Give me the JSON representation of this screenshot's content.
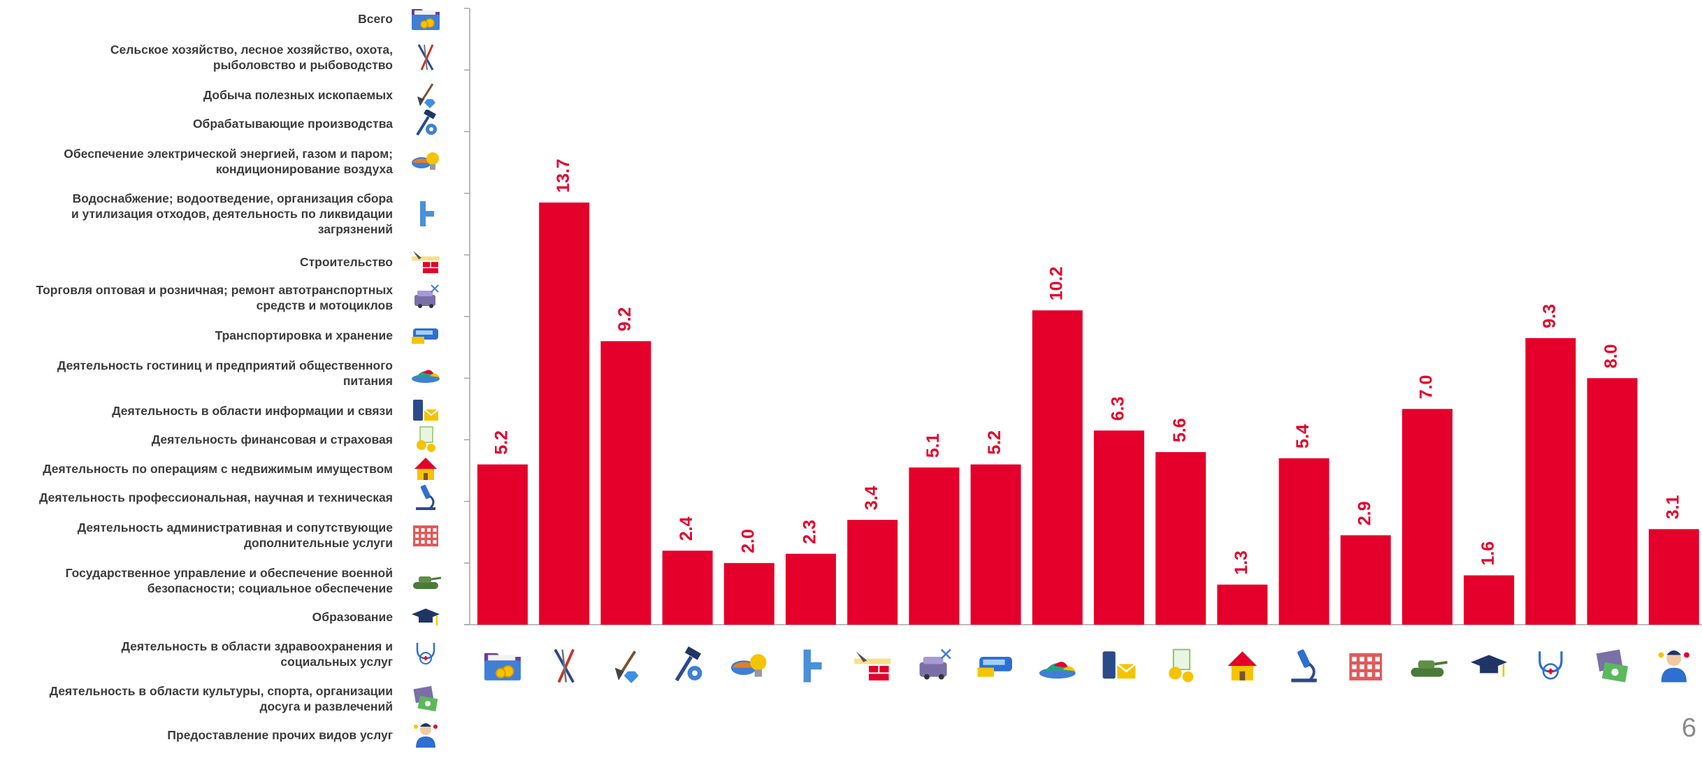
{
  "chart_data": {
    "type": "bar",
    "categories": [
      "Всего",
      "Сельское хозяйство, лесное хозяйство, охота, рыболовство и рыбоводство",
      "Добыча полезных ископаемых",
      "Обрабатывающие производства",
      "Обеспечение электрической энергией, газом и паром; кондиционирование воздуха",
      "Водоснабжение; водоотведение, организация сбора и утилизация отходов, деятельность по ликвидации загрязнений",
      "Строительство",
      "Торговля оптовая и розничная; ремонт автотранспортных средств и мотоциклов",
      "Транспортировка и хранение",
      "Деятельность гостиниц и предприятий общественного питания",
      "Деятельность в области информации и связи",
      "Деятельность финансовая и страховая",
      "Деятельность по операциям с недвижимым имуществом",
      "Деятельность профессиональная, научная и техническая",
      "Деятельность административная и сопутствующие дополнительные услуги",
      "Государственное управление и обеспечение военной безопасности; социальное обеспечение",
      "Образование",
      "Деятельность в области здравоохранения и социальных услуг",
      "Деятельность в области культуры, спорта, организации досуга и развлечений",
      "Предоставление прочих видов услуг"
    ],
    "category_lines": [
      [
        "Всего"
      ],
      [
        "Сельское хозяйство, лесное хозяйство, охота,",
        "рыболовство и рыбоводство"
      ],
      [
        "Добыча полезных ископаемых"
      ],
      [
        "Обрабатывающие производства"
      ],
      [
        "Обеспечение электрической энергией, газом и паром;",
        "кондиционирование воздуха"
      ],
      [
        "Водоснабжение; водоотведение, организация сбора",
        "и утилизация отходов, деятельность по ликвидации",
        "загрязнений"
      ],
      [
        "Строительство"
      ],
      [
        "Торговля оптовая и розничная; ремонт автотранспортных",
        "средств и мотоциклов"
      ],
      [
        "Транспортировка и хранение"
      ],
      [
        "Деятельность гостиниц и предприятий общественного",
        "питания"
      ],
      [
        "Деятельность в области информации и связи"
      ],
      [
        "Деятельность финансовая и страховая"
      ],
      [
        "Деятельность по операциям с недвижимым имуществом"
      ],
      [
        "Деятельность профессиональная, научная и техническая"
      ],
      [
        "Деятельность административная и сопутствующие",
        "дополнительные услуги"
      ],
      [
        "Государственное управление и обеспечение военной",
        "безопасности; социальное обеспечение"
      ],
      [
        "Образование"
      ],
      [
        "Деятельность в области здравоохранения и",
        "социальных услуг"
      ],
      [
        "Деятельность в области культуры, спорта, организации",
        "досуга и развлечений"
      ],
      [
        "Предоставление прочих видов услуг"
      ]
    ],
    "icons": [
      "folder-coins-icon",
      "fishing-tools-icon",
      "shovel-gem-icon",
      "hammer-gear-icon",
      "power-bulb-icon",
      "water-pipe-icon",
      "trowel-bricks-icon",
      "car-repair-icon",
      "bus-truck-icon",
      "food-dish-icon",
      "phone-mail-icon",
      "finance-coins-icon",
      "house-keys-icon",
      "microscope-icon",
      "office-building-icon",
      "tank-icon",
      "graduation-cap-icon",
      "stethoscope-icon",
      "culture-money-icon",
      "service-person-icon"
    ],
    "values": [
      5.2,
      13.7,
      9.2,
      2.4,
      2.0,
      2.3,
      3.4,
      5.1,
      5.2,
      10.2,
      6.3,
      5.6,
      1.3,
      5.4,
      2.9,
      7.0,
      1.6,
      9.3,
      8.0,
      3.1
    ],
    "value_labels": [
      "5.2",
      "13.7",
      "9.2",
      "2.4",
      "2.0",
      "2.3",
      "3.4",
      "5.1",
      "5.2",
      "10.2",
      "6.3",
      "5.6",
      "1.3",
      "5.4",
      "2.9",
      "7.0",
      "1.6",
      "9.3",
      "8.0",
      "3.1"
    ],
    "ylim": [
      0,
      20
    ],
    "ytick_step": 2,
    "ytick_labels_shown": false,
    "grid": false,
    "legend_placement": "left",
    "title": "",
    "xlabel": "",
    "ylabel": ""
  },
  "colors": {
    "bar": "#e4002b",
    "value_label": "#e4002b",
    "axis": "#a6a6a6",
    "legend_text": "#3c3c3c",
    "page_number": "#8a8a8a"
  },
  "page_number": "6"
}
